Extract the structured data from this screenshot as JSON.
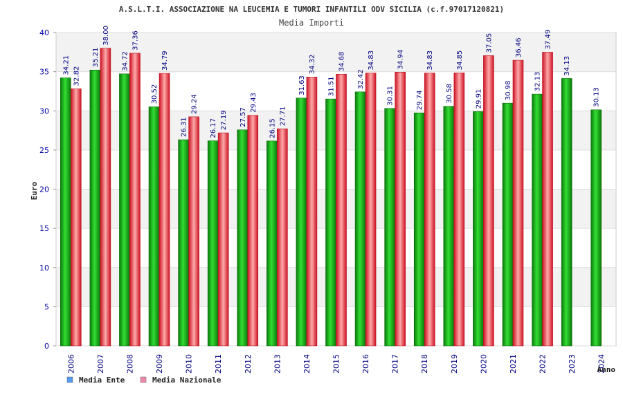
{
  "title": "A.S.L.T.I. ASSOCIAZIONE NA LEUCEMIA E TUMORI INFANTILI ODV SICILIA (c.f.97017120821)",
  "subtitle": "Media Importi",
  "chart_data": {
    "type": "bar",
    "ylabel": "Euro",
    "xlabel": "Anno",
    "ylim": [
      0,
      40
    ],
    "yticks": [
      0,
      5,
      10,
      15,
      20,
      25,
      30,
      35,
      40
    ],
    "categories": [
      "2006",
      "2007",
      "2008",
      "2009",
      "2010",
      "2011",
      "2012",
      "2013",
      "2014",
      "2015",
      "2016",
      "2017",
      "2018",
      "2019",
      "2020",
      "2021",
      "2022",
      "2023",
      "2024"
    ],
    "series": [
      {
        "name": "Media Ente",
        "bar_color": "#22bb22",
        "legend_color": "#5599ee",
        "values": [
          34.21,
          35.21,
          34.72,
          30.52,
          26.31,
          26.17,
          27.57,
          26.15,
          31.63,
          31.51,
          32.42,
          30.31,
          29.74,
          30.58,
          29.91,
          30.98,
          32.13,
          34.13,
          30.13
        ],
        "labels": [
          "34.21",
          "35.21",
          "34.72",
          "30.52",
          "26.31",
          "26.17",
          "27.57",
          "26.15",
          "31.63",
          "31.51",
          "32.42",
          "30.31",
          "29.74",
          "30.58",
          "29.91",
          "30.98",
          "32.13",
          "34.13",
          "30.13"
        ]
      },
      {
        "name": "Media Nazionale",
        "bar_color": "#ee3344",
        "legend_color": "#ee88aa",
        "values": [
          32.82,
          38.0,
          37.36,
          34.79,
          29.24,
          27.19,
          29.43,
          27.71,
          34.32,
          34.68,
          34.83,
          34.94,
          34.83,
          34.85,
          37.05,
          36.46,
          37.49,
          null,
          null
        ],
        "labels": [
          "32.82",
          "38.00",
          "37.36",
          "34.79",
          "29.24",
          "27.19",
          "29.43",
          "27.71",
          "34.32",
          "34.68",
          "34.83",
          "34.94",
          "34.83",
          "34.85",
          "37.05",
          "36.46",
          "37.49",
          "",
          ""
        ]
      }
    ],
    "grid": true,
    "legend": "bottom-left"
  }
}
